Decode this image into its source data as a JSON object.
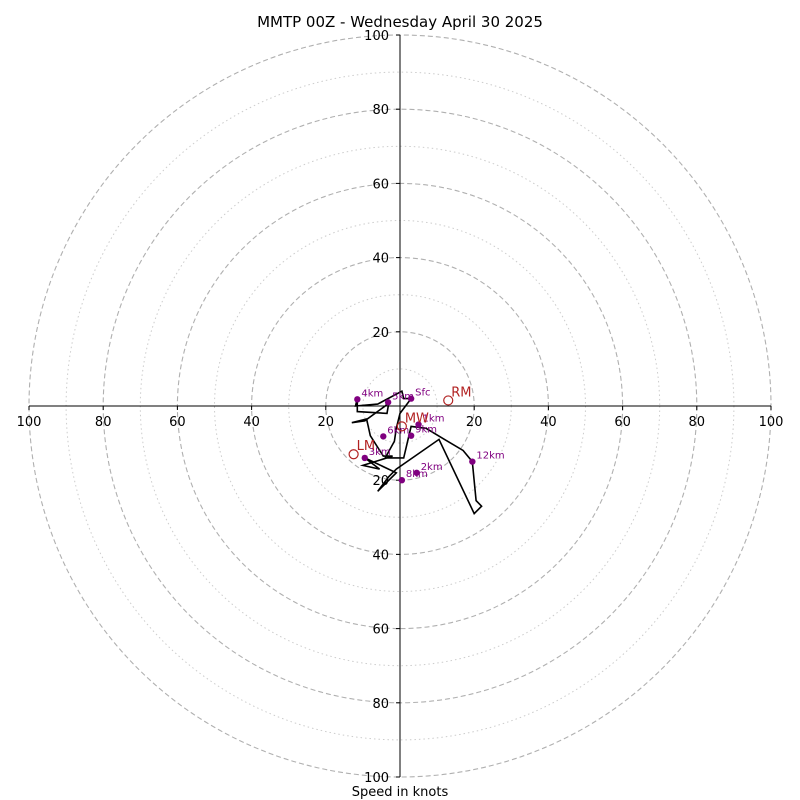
{
  "chart_data": {
    "type": "hodograph",
    "title": "MMTP 00Z - Wednesday April 30 2025",
    "xlabel": "Speed in knots",
    "range": [
      -100,
      100
    ],
    "ring_major": [
      20,
      40,
      60,
      80,
      100
    ],
    "ring_minor": [
      10,
      30,
      50,
      70,
      90
    ],
    "x_ticks": [
      {
        "value": -100,
        "label": "100"
      },
      {
        "value": -80,
        "label": "80"
      },
      {
        "value": -60,
        "label": "60"
      },
      {
        "value": -40,
        "label": "40"
      },
      {
        "value": -20,
        "label": "20"
      },
      {
        "value": 20,
        "label": "20"
      },
      {
        "value": 40,
        "label": "40"
      },
      {
        "value": 60,
        "label": "60"
      },
      {
        "value": 80,
        "label": "80"
      },
      {
        "value": 100,
        "label": "100"
      }
    ],
    "y_ticks": [
      {
        "value": 100,
        "label": "100"
      },
      {
        "value": 80,
        "label": "80"
      },
      {
        "value": 60,
        "label": "60"
      },
      {
        "value": 40,
        "label": "40"
      },
      {
        "value": 20,
        "label": "20"
      },
      {
        "value": -20,
        "label": "20"
      },
      {
        "value": -40,
        "label": "40"
      },
      {
        "value": -60,
        "label": "60"
      },
      {
        "value": -80,
        "label": "80"
      },
      {
        "value": -100,
        "label": "100"
      }
    ],
    "trace": [
      [
        3,
        2
      ],
      [
        1,
        2
      ],
      [
        0.5,
        4
      ],
      [
        -6,
        0.5
      ],
      [
        -12,
        0
      ],
      [
        -11.5,
        2
      ],
      [
        -11.5,
        -1.5
      ],
      [
        -3.5,
        -2
      ],
      [
        -3,
        1
      ],
      [
        -4,
        0
      ],
      [
        -9.5,
        -4
      ],
      [
        -13,
        -4.5
      ],
      [
        -9,
        -3.5
      ],
      [
        -8,
        -8
      ],
      [
        -4.5,
        -13.5
      ],
      [
        -2,
        -13.5
      ],
      [
        -10,
        -16
      ],
      [
        -5.5,
        -17
      ],
      [
        -9.5,
        -14
      ],
      [
        -1,
        -18
      ],
      [
        -6,
        -23
      ],
      [
        -3,
        -19
      ],
      [
        -1,
        -17
      ],
      [
        10.5,
        -9
      ],
      [
        20,
        -29
      ],
      [
        22,
        -27
      ],
      [
        20.5,
        -25.5
      ],
      [
        19.5,
        -15
      ],
      [
        19.5,
        -15
      ],
      [
        17,
        -12
      ],
      [
        12,
        -9
      ],
      [
        7,
        -6
      ],
      [
        3,
        -5.5
      ],
      [
        1,
        -14
      ],
      [
        -4,
        -14
      ],
      [
        -1.5,
        -9.5
      ],
      [
        -1,
        -6
      ],
      [
        0,
        -2
      ],
      [
        3,
        2
      ]
    ],
    "points": [
      {
        "label": "Sfc",
        "u": 3,
        "v": 2
      },
      {
        "label": "5km",
        "u": -3.2,
        "v": 1
      },
      {
        "label": "4km",
        "u": -11.5,
        "v": 1.8
      },
      {
        "label": "1km",
        "u": 5,
        "v": -5
      },
      {
        "label": "6km",
        "u": -4.5,
        "v": -8.2
      },
      {
        "label": "3km",
        "u": -9.5,
        "v": -14
      },
      {
        "label": "2km",
        "u": 4.5,
        "v": -18
      },
      {
        "label": "9km",
        "u": 3,
        "v": -8
      },
      {
        "label": "8km",
        "u": 0.5,
        "v": -20
      },
      {
        "label": "12km",
        "u": 19.5,
        "v": -15
      }
    ],
    "storm_motion": [
      {
        "label": "RM",
        "u": 13,
        "v": 1.5
      },
      {
        "label": "MW",
        "u": 0.5,
        "v": -5.5
      },
      {
        "label": "LM",
        "u": -12.5,
        "v": -13
      }
    ],
    "colors": {
      "trace": "#000000",
      "points": "#800080",
      "motion": "#b22222",
      "ring": "#b0b0b0",
      "axis": "#000000"
    }
  }
}
